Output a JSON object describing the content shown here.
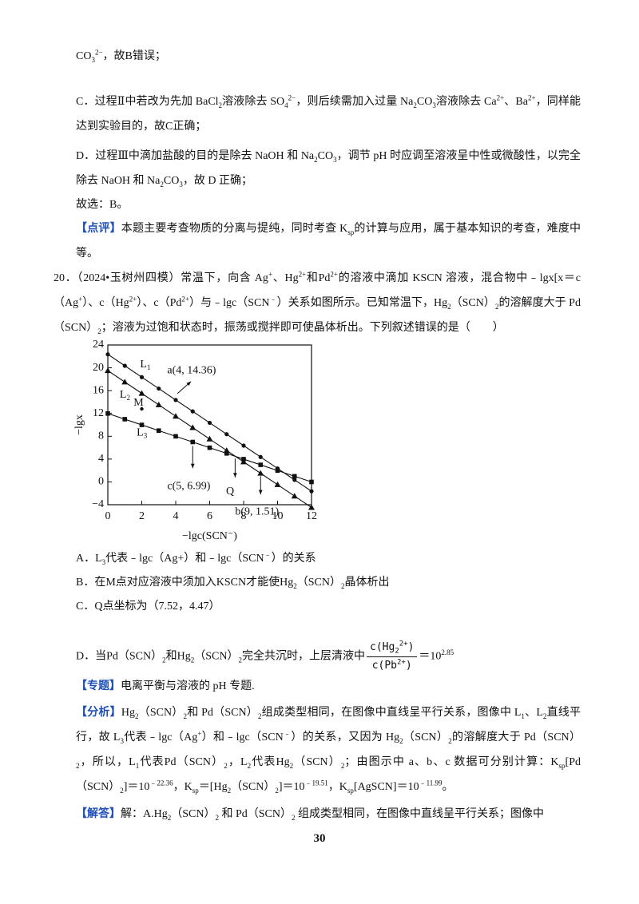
{
  "blocks": [
    {
      "runs": [
        "CO",
        {
          "sub": "3"
        },
        {
          "sup": "2−"
        },
        "，故B错误；"
      ]
    },
    {
      "runs": [
        "C．过程Ⅱ中若改为先加 BaCl",
        {
          "sub": "2"
        },
        "溶液除去 SO",
        {
          "sub": "4"
        },
        {
          "sup": "2−"
        },
        "，则后续需加入过量 Na",
        {
          "sub": "2"
        },
        "CO",
        {
          "sub": "3"
        },
        "溶液除去 Ca",
        {
          "sup": "2+"
        },
        "、Ba",
        {
          "sup": "2+"
        },
        "，同样能达到实验目的，故C正确；"
      ]
    },
    {
      "runs": [
        "D．过程Ⅲ中滴加盐酸的目的是除去 NaOH 和 Na",
        {
          "sub": "2"
        },
        "CO",
        {
          "sub": "3"
        },
        "，调节 pH 时应调至溶液呈中性或微酸性，以完全除去 NaOH 和 Na",
        {
          "sub": "2"
        },
        "CO",
        {
          "sub": "3"
        },
        "，故 D 正确；"
      ]
    },
    {
      "runs": [
        "故选：B。"
      ]
    },
    {
      "runs": [
        {
          "tag": "【点评】"
        },
        "本题主要考查物质的分离与提纯，同时考查 K",
        {
          "sub": "sp"
        },
        "的计算与应用，属于基本知识的考查，难度中等。"
      ]
    },
    {
      "runs": [
        "20．（2024•玉树州四模）常温下，向含 Ag",
        {
          "sup": "+"
        },
        "、Hg",
        {
          "sup": "2+"
        },
        "和Pd",
        {
          "sup": "2+"
        },
        "的溶液中滴加 KSCN 溶液，混合物中﹣lgx[x＝c（Ag",
        {
          "sup": "+"
        },
        "）、c（Hg",
        {
          "sup": "2+"
        },
        "）、c（Pd",
        {
          "sup": "2+"
        },
        "）与﹣lgc（SCN",
        {
          "sup": "﹣"
        },
        "）关系如图所示。已知常温下，Hg",
        {
          "sub": "2"
        },
        "（SCN）",
        {
          "sub": "2"
        },
        "的溶解度大于 Pd（SCN）",
        {
          "sub": "2"
        },
        "；溶液为过饱和状态时，振荡或搅拌即可使晶体析出。下列叙述错误的是（　　）"
      ]
    },
    {
      "runs": [
        "A．L",
        {
          "sub": "3"
        },
        "代表﹣lgc（Ag+）和﹣lgc（SCN",
        {
          "sup": "﹣"
        },
        "）的关系"
      ]
    },
    {
      "runs": [
        "B．在M点对应溶液中须加入KSCN才能使Hg",
        {
          "sub": "2"
        },
        "（SCN）",
        {
          "sub": "2"
        },
        "晶体析出"
      ]
    },
    {
      "runs": [
        "C．Q点坐标为（7.52，4.47）"
      ]
    },
    {
      "runs": [
        "D．当Pd（SCN）",
        {
          "sub": "2"
        },
        "和Hg",
        {
          "sub": "2"
        },
        "（SCN）",
        {
          "sub": "2"
        },
        "完全共沉时，上层清液中",
        {
          "num": [
            "c(Hg",
            {
              "sub": "2"
            },
            {
              "sup": "2+"
            },
            ")"
          ],
          "den": [
            "c(Pb",
            {
              "sup": "2+"
            },
            ")"
          ]
        },
        "＝10",
        {
          "sup": "2.85"
        }
      ]
    },
    {
      "runs": [
        {
          "tag": "【专题】"
        },
        "电离平衡与溶液的 pH 专题."
      ]
    },
    {
      "runs": [
        {
          "tag": "【分析】"
        },
        "Hg",
        {
          "sub": "2"
        },
        "（SCN）",
        {
          "sub": "2"
        },
        "和 Pd（SCN）",
        {
          "sub": "2"
        },
        "组成类型相同，在图像中直线呈平行关系，图像中 L",
        {
          "sub": "1"
        },
        "、L",
        {
          "sub": "2"
        },
        "直线平行，故 L",
        {
          "sub": "3"
        },
        "代表﹣lgc（Ag",
        {
          "sup": "+"
        },
        "）和﹣lgc（SCN",
        {
          "sup": "﹣"
        },
        "）的关系，又因为 Hg",
        {
          "sub": "2"
        },
        "（SCN）",
        {
          "sub": "2"
        },
        "的溶解度大于 Pd（SCN）",
        {
          "sub": "2"
        },
        "，所以，L",
        {
          "sub": "1"
        },
        "代表Pd（SCN）",
        {
          "sub": "2"
        },
        "，L",
        {
          "sub": "2"
        },
        "代表Hg",
        {
          "sub": "2"
        },
        "（SCN）",
        {
          "sub": "2"
        },
        "；由图示中 a、b、c 数据可分别计算：K",
        {
          "sub": "sp"
        },
        "[Pd（SCN）",
        {
          "sub": "2"
        },
        "]＝10",
        {
          "sup": "﹣22.36"
        },
        "，K",
        {
          "sub": "sp"
        },
        "＝[Hg",
        {
          "sub": "2"
        },
        "（SCN）",
        {
          "sub": "2"
        },
        "]＝10",
        {
          "sup": "﹣19.51"
        },
        "，K",
        {
          "sub": "sp"
        },
        "[AgSCN]＝10",
        {
          "sup": "﹣11.99"
        },
        "。"
      ]
    },
    {
      "runs": [
        {
          "tag": "【解答】"
        },
        "解：A.Hg",
        {
          "sub": "2"
        },
        "（SCN）",
        {
          "sub": "2"
        },
        " 和 Pd（SCN）",
        {
          "sub": "2"
        },
        " 组成类型相同，在图像中直线呈平行关系；图像中"
      ]
    }
  ],
  "chart_data": {
    "type": "line",
    "x_label": "−lgc(SCN⁻)",
    "y_label": "−lgx",
    "xlim": [
      0,
      12
    ],
    "xticks": [
      0,
      2,
      4,
      6,
      8,
      10,
      12
    ],
    "ylim": [
      -4,
      24
    ],
    "yticks": [
      {
        "value": -4,
        "label": "−4"
      },
      0,
      4,
      8,
      12,
      16,
      20,
      24
    ],
    "grid": false,
    "color": "#111111",
    "series": [
      {
        "name": "L1",
        "marker": "circle",
        "x": [
          0,
          1,
          2,
          3,
          4,
          5,
          6,
          7,
          8,
          9,
          10,
          11,
          12
        ],
        "values": [
          22.36,
          20.36,
          18.36,
          16.36,
          14.36,
          12.36,
          10.36,
          8.36,
          6.36,
          4.36,
          2.36,
          0.36,
          -1.64
        ]
      },
      {
        "name": "L2",
        "marker": "triangle",
        "x": [
          0,
          1,
          2,
          3,
          4,
          5,
          6,
          7,
          8,
          9,
          10,
          11,
          12
        ],
        "values": [
          19.51,
          17.51,
          15.51,
          13.51,
          11.51,
          9.51,
          7.51,
          5.51,
          3.51,
          1.51,
          -0.49,
          -2.49,
          -4.49
        ]
      },
      {
        "name": "L3",
        "marker": "square",
        "x": [
          0,
          1,
          2,
          3,
          4,
          5,
          6,
          7,
          8,
          9,
          10,
          11,
          12
        ],
        "values": [
          11.99,
          10.99,
          9.99,
          8.99,
          7.99,
          6.99,
          5.99,
          4.99,
          3.99,
          2.99,
          1.99,
          0.99,
          -0.01
        ]
      }
    ],
    "points": [
      {
        "label": "M",
        "x": 2,
        "y": 12.8
      }
    ],
    "annotations": [
      "a(4, 14.36)",
      "c(5, 6.99)",
      "Q",
      "b(9, 1.51)"
    ]
  },
  "page_number": "30"
}
